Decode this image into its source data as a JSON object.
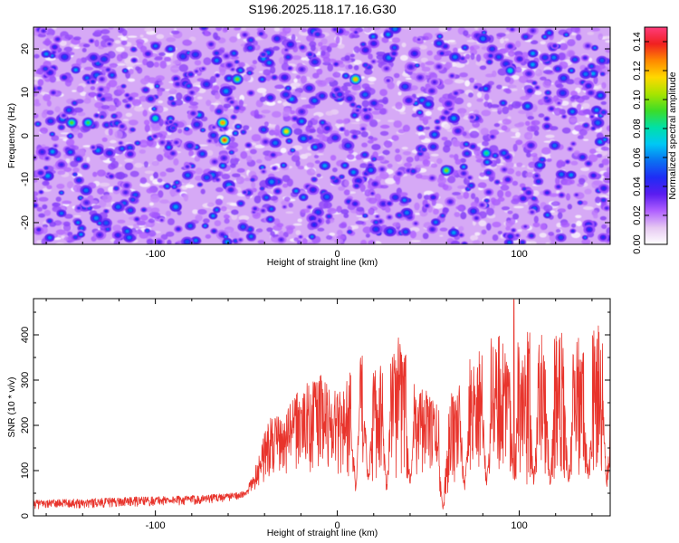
{
  "figure": {
    "title": "S196.2025.118.17.16.G30"
  },
  "colors": {
    "snr_line": "#e8342c",
    "colormap": [
      "#ffffff",
      "#e6c8f2",
      "#b060ff",
      "#5a1cf0",
      "#1f2cf5",
      "#0a72f2",
      "#00c8f5",
      "#00e0a8",
      "#3cdc28",
      "#a8e400",
      "#ffd800",
      "#ff8800",
      "#f02020",
      "#ff3c7c"
    ]
  },
  "chart_data": [
    {
      "type": "heatmap",
      "title": "S196.2025.118.17.16.G30",
      "xlabel": "Height of straight line (km)",
      "ylabel": "Frequency (Hz)",
      "xlim": [
        -167,
        150
      ],
      "ylim": [
        -25,
        25
      ],
      "x_ticks": [
        -100,
        0,
        100
      ],
      "x_tick_labels": [
        "-100",
        "0",
        "100"
      ],
      "y_ticks": [
        -20,
        -10,
        0,
        10,
        20
      ],
      "y_tick_labels": [
        "-20",
        "-10",
        "0",
        "10",
        "20"
      ],
      "colorbar": {
        "label": "Normalized spectral amplitude",
        "range": [
          0,
          0.15
        ],
        "ticks": [
          0.0,
          0.02,
          0.04,
          0.06,
          0.08,
          0.1,
          0.12,
          0.14
        ],
        "tick_labels": [
          "0.00",
          "0.02",
          "0.04",
          "0.06",
          "0.08",
          "0.10",
          "0.12",
          "0.14"
        ]
      },
      "description_values": {
        "background_level": 0.015,
        "typical_peak": 0.05,
        "max_peaks": [
          {
            "x": -62,
            "y": -1,
            "value": 0.135
          },
          {
            "x": -63,
            "y": 3,
            "value": 0.125
          },
          {
            "x": 10,
            "y": 13,
            "value": 0.12
          },
          {
            "x": -28,
            "y": 1,
            "value": 0.115
          },
          {
            "x": -55,
            "y": 13,
            "value": 0.1
          },
          {
            "x": 60,
            "y": -8,
            "value": 0.1
          },
          {
            "x": -146,
            "y": 3,
            "value": 0.095
          },
          {
            "x": -137,
            "y": 3,
            "value": 0.09
          },
          {
            "x": 82,
            "y": -4,
            "value": 0.085
          },
          {
            "x": -100,
            "y": 4,
            "value": 0.08
          },
          {
            "x": 95,
            "y": 15,
            "value": 0.075
          }
        ]
      }
    },
    {
      "type": "line",
      "xlabel": "Height of straight line (km)",
      "ylabel": "SNR (10 * v/v)",
      "xlim": [
        -167,
        150
      ],
      "ylim": [
        0,
        480
      ],
      "x_ticks": [
        -100,
        0,
        100
      ],
      "x_tick_labels": [
        "-100",
        "0",
        "100"
      ],
      "y_ticks": [
        0,
        100,
        200,
        300,
        400
      ],
      "y_tick_labels": [
        "0",
        "100",
        "200",
        "300",
        "400"
      ],
      "envelope": {
        "x": [
          -167,
          -140,
          -110,
          -80,
          -60,
          -50,
          -45,
          -40,
          -35,
          -30,
          -25,
          -20,
          -15,
          -10,
          -5,
          0,
          5,
          10,
          15,
          20,
          25,
          30,
          35,
          40,
          45,
          50,
          55,
          60,
          65,
          70,
          75,
          80,
          85,
          90,
          95,
          100,
          105,
          110,
          115,
          120,
          125,
          130,
          135,
          140,
          145,
          150
        ],
        "baseline": [
          15,
          17,
          20,
          24,
          32,
          40,
          55,
          75,
          85,
          80,
          95,
          100,
          90,
          85,
          90,
          80,
          80,
          85,
          90,
          70,
          75,
          75,
          70,
          65,
          80,
          110,
          60,
          30,
          70,
          90,
          85,
          75,
          75,
          70,
          70,
          70,
          65,
          65,
          70,
          65,
          70,
          70,
          65,
          70,
          75,
          75
        ],
        "peak": [
          35,
          38,
          42,
          45,
          50,
          55,
          110,
          190,
          230,
          210,
          260,
          280,
          300,
          320,
          290,
          290,
          300,
          340,
          360,
          330,
          345,
          380,
          400,
          380,
          300,
          270,
          250,
          250,
          290,
          330,
          360,
          390,
          400,
          405,
          450,
          420,
          410,
          400,
          410,
          405,
          410,
          400,
          410,
          420,
          425,
          430
        ]
      },
      "dips": [
        {
          "x": 10,
          "min": 55
        },
        {
          "x": 17,
          "min": 75
        },
        {
          "x": 27,
          "min": 55
        },
        {
          "x": 40,
          "min": 60
        },
        {
          "x": 58,
          "min": 10
        },
        {
          "x": 70,
          "min": 55
        },
        {
          "x": 82,
          "min": 65
        },
        {
          "x": 97,
          "min": 65
        },
        {
          "x": 108,
          "min": 65
        },
        {
          "x": 117,
          "min": 65
        },
        {
          "x": 127,
          "min": 65
        },
        {
          "x": 138,
          "min": 75
        },
        {
          "x": 148,
          "min": 55
        }
      ],
      "max_value": {
        "x": 97,
        "value": 478
      }
    }
  ]
}
